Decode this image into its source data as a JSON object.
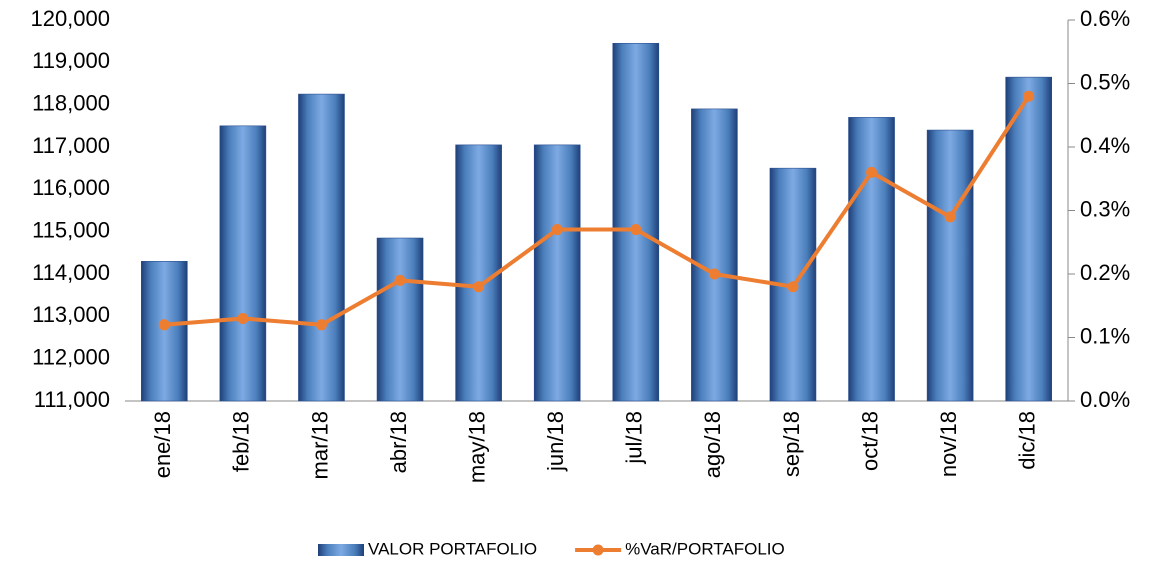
{
  "chart_data": {
    "type": "bar_line",
    "categories": [
      "ene/18",
      "feb/18",
      "mar/18",
      "abr/18",
      "may/18",
      "jun/18",
      "jul/18",
      "ago/18",
      "sep/18",
      "oct/18",
      "nov/18",
      "dic/18"
    ],
    "series": [
      {
        "name": "VALOR PORTAFOLIO",
        "type": "bar",
        "color": "#4a7ebb",
        "values": [
          114300,
          117500,
          118250,
          114850,
          117050,
          117050,
          119450,
          117900,
          116500,
          117700,
          117400,
          118650
        ]
      },
      {
        "name": "%VaR/PORTAFOLIO",
        "type": "line",
        "axis": "y2",
        "color": "#ed7d31",
        "values": [
          0.12,
          0.13,
          0.12,
          0.19,
          0.18,
          0.27,
          0.27,
          0.2,
          0.18,
          0.36,
          0.29,
          0.48
        ]
      }
    ],
    "ylim": [
      111000,
      120000
    ],
    "yticks": [
      {
        "value": 111000,
        "label": "111,000"
      },
      {
        "value": 112000,
        "label": "112,000"
      },
      {
        "value": 113000,
        "label": "113,000"
      },
      {
        "value": 114000,
        "label": "114,000"
      },
      {
        "value": 115000,
        "label": "115,000"
      },
      {
        "value": 116000,
        "label": "116,000"
      },
      {
        "value": 117000,
        "label": "117,000"
      },
      {
        "value": 118000,
        "label": "118,000"
      },
      {
        "value": 119000,
        "label": "119,000"
      },
      {
        "value": 120000,
        "label": "120,000"
      }
    ],
    "y2lim": [
      0,
      0.6
    ],
    "y2ticks": [
      {
        "value": 0,
        "label": "0.0%"
      },
      {
        "value": 0.1,
        "label": "0.1%"
      },
      {
        "value": 0.2,
        "label": "0.2%"
      },
      {
        "value": 0.3,
        "label": "0.3%"
      },
      {
        "value": 0.4,
        "label": "0.4%"
      },
      {
        "value": 0.5,
        "label": "0.5%"
      },
      {
        "value": 0.6,
        "label": "0.6%"
      }
    ],
    "grid": false,
    "legend": "bottom"
  }
}
